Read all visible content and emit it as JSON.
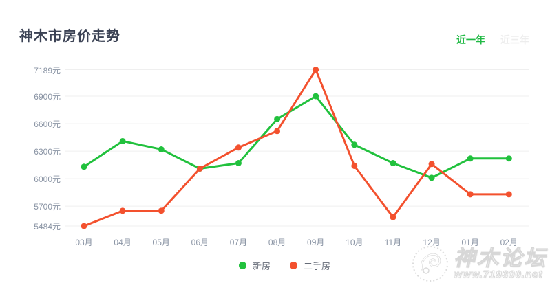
{
  "header": {
    "title": "神木市房价走势",
    "tabs": [
      {
        "label": "近一年",
        "active": true
      },
      {
        "label": "近三年",
        "active": false
      }
    ]
  },
  "chart_data": {
    "type": "line",
    "title": "神木市房价走势",
    "categories": [
      "03月",
      "04月",
      "05月",
      "06月",
      "07月",
      "08月",
      "09月",
      "10月",
      "11月",
      "12月",
      "01月",
      "02月"
    ],
    "series": [
      {
        "name": "新房",
        "color": "#21c13d",
        "values": [
          6130,
          6410,
          6320,
          6110,
          6170,
          6650,
          6900,
          6370,
          6170,
          6010,
          6220,
          6220
        ]
      },
      {
        "name": "二手房",
        "color": "#f3512e",
        "values": [
          5484,
          5650,
          5650,
          6110,
          6340,
          6520,
          7189,
          6140,
          5580,
          6160,
          5830,
          5830
        ]
      }
    ],
    "ylim": [
      5484,
      7189
    ],
    "yticks": [
      7189,
      6900,
      6600,
      6300,
      6000,
      5700,
      5484
    ],
    "y_unit": "元",
    "grid": true,
    "gridline_color": "#efefef",
    "legend_position": "bottom"
  },
  "watermark": {
    "site_name": "神木论坛",
    "site_url": "www.719300.net"
  }
}
